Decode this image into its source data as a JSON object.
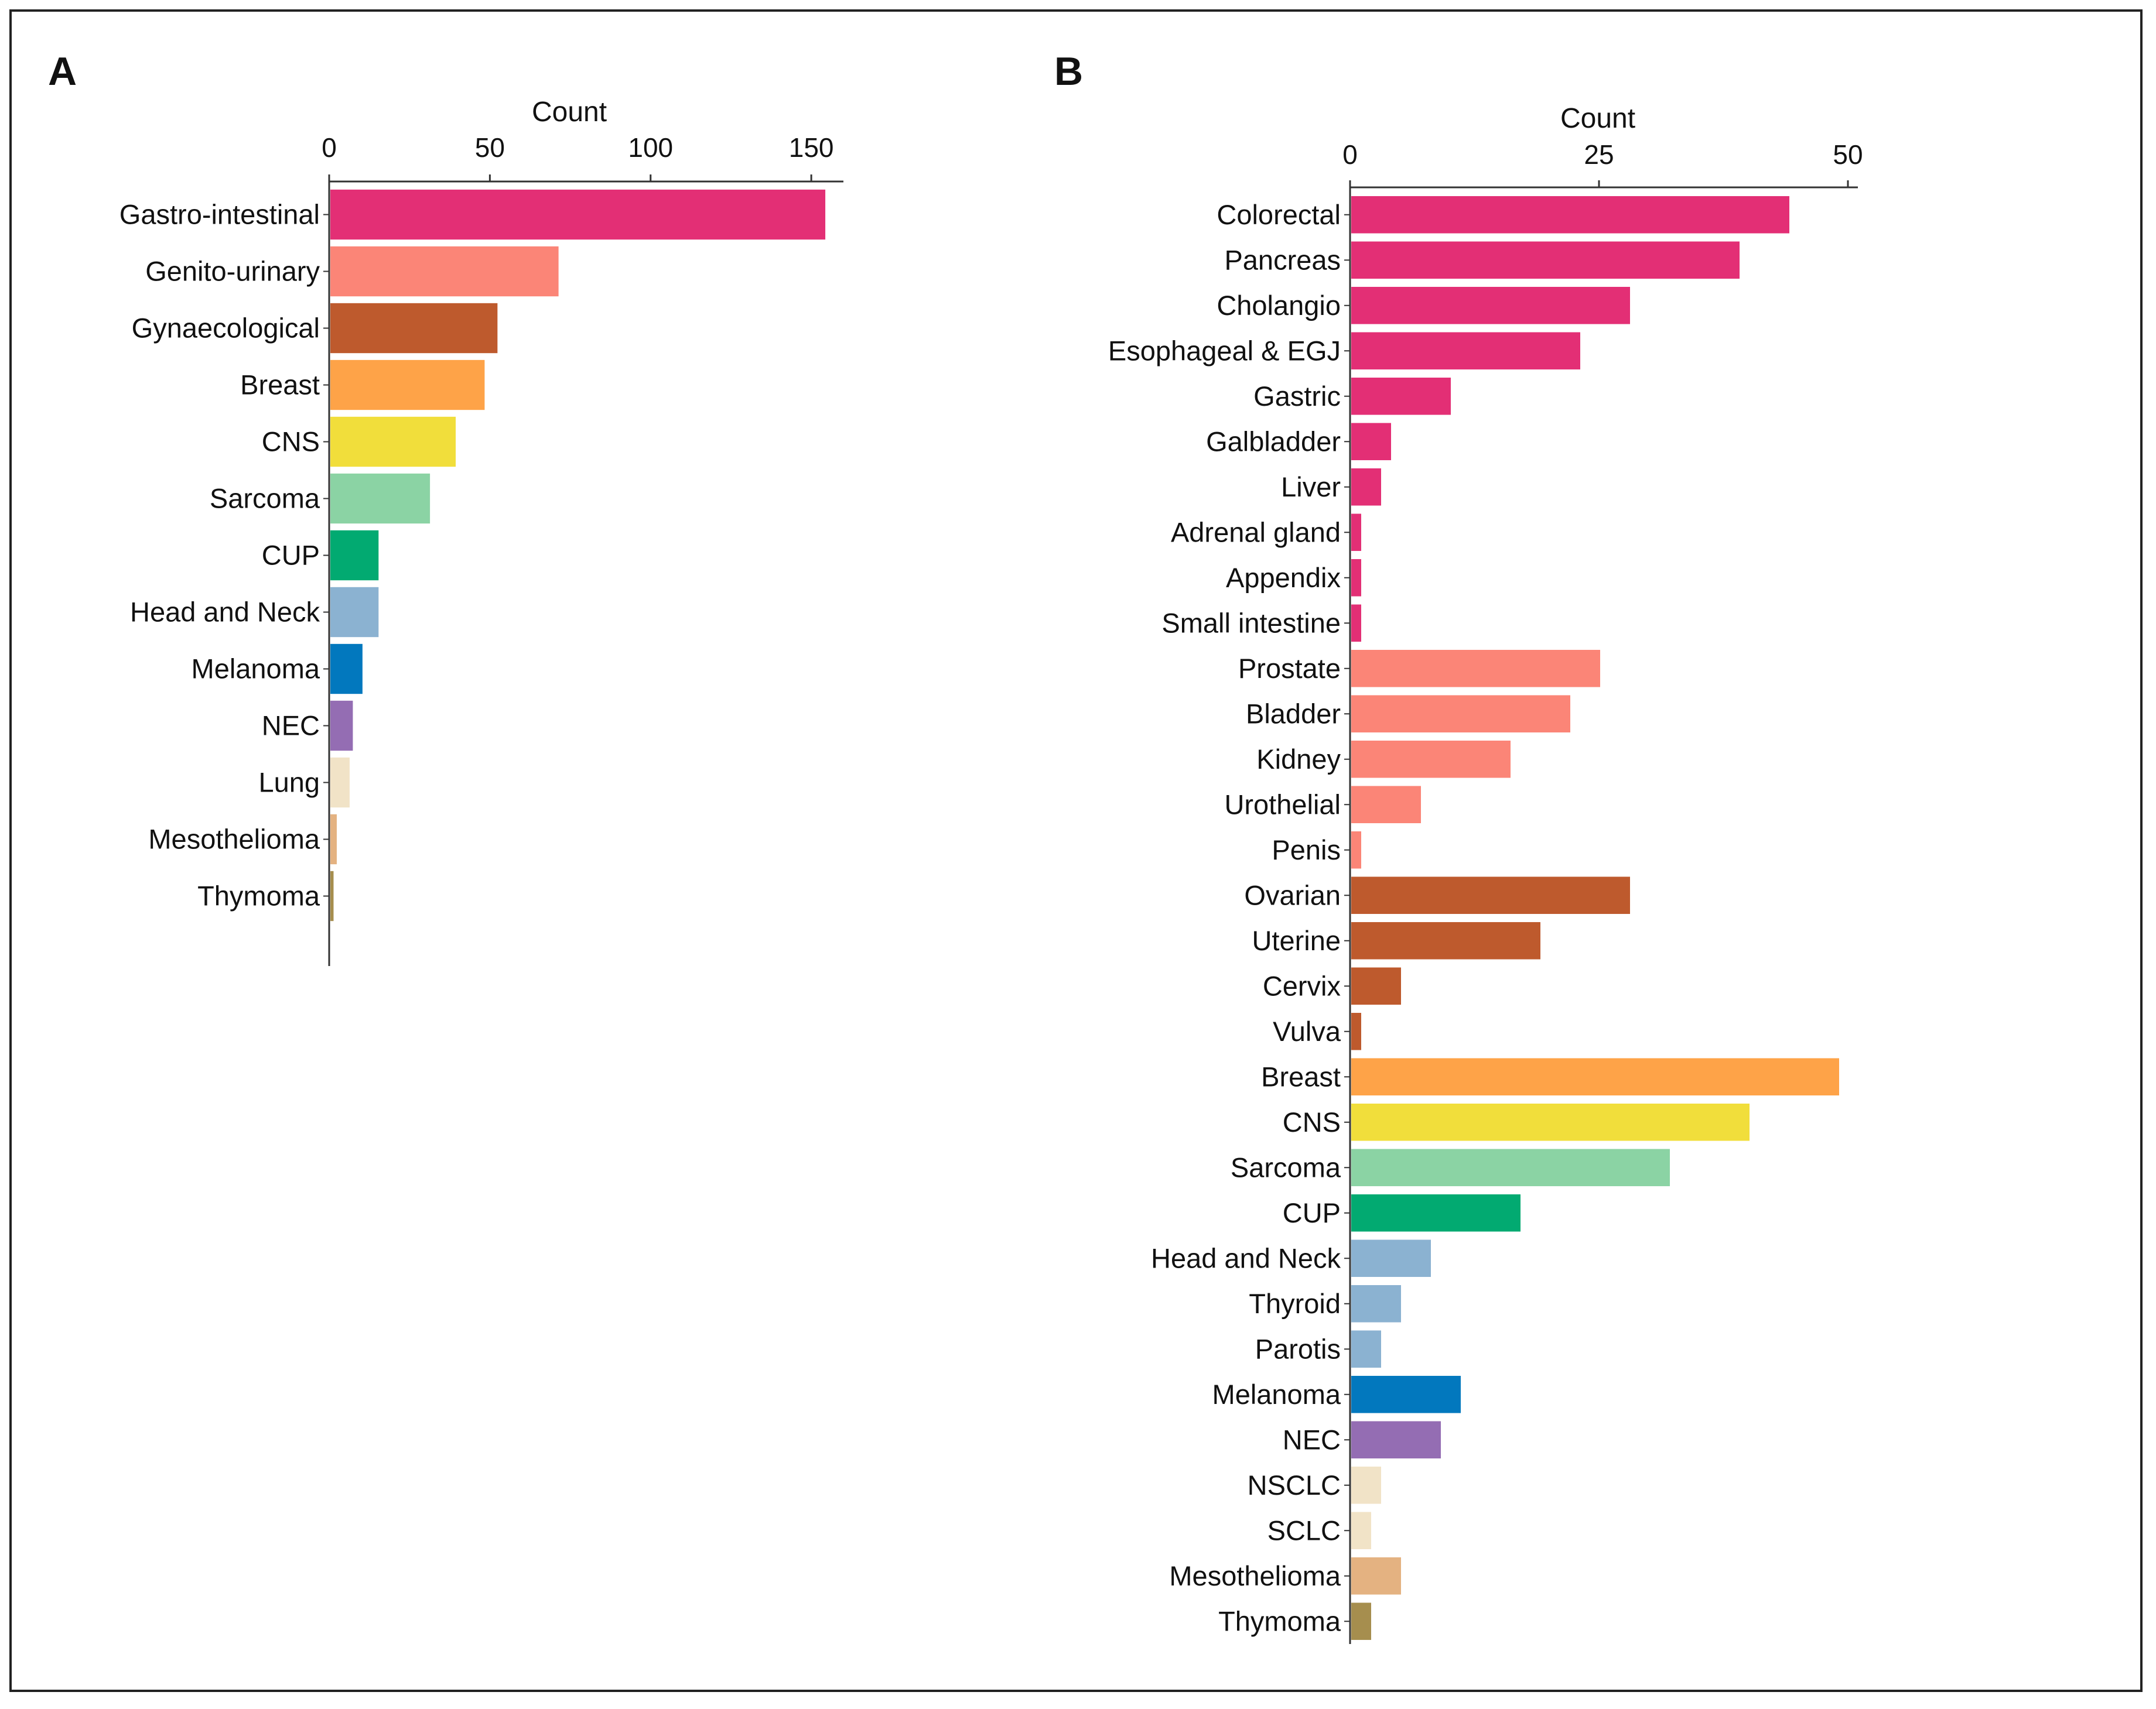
{
  "chart_data": [
    {
      "panel": "A",
      "type": "bar",
      "orientation": "horizontal",
      "xlabel": "Count",
      "xlim": [
        0,
        160
      ],
      "xticks": [
        0,
        50,
        100,
        150
      ],
      "categories": [
        "Gastro-intestinal",
        "Genito-urinary",
        "Gynaecological",
        "Breast",
        "CNS",
        "Sarcoma",
        "CUP",
        "Head and Neck",
        "Melanoma",
        "NEC",
        "Lung",
        "Mesothelioma",
        "Thymoma"
      ],
      "values": [
        154,
        71,
        52,
        48,
        39,
        31,
        15,
        15,
        10,
        7,
        6,
        2,
        1
      ],
      "colors": [
        "#e32f75",
        "#fb8577",
        "#be5a2d",
        "#fea348",
        "#f1de3b",
        "#8bd3a4",
        "#02aa71",
        "#8bb2d1",
        "#0278be",
        "#946db3",
        "#f1e3c7",
        "#e4b281",
        "#a68e4e"
      ]
    },
    {
      "panel": "B",
      "type": "bar",
      "orientation": "horizontal",
      "xlabel": "Count",
      "xlim": [
        0,
        51
      ],
      "xticks": [
        0,
        25,
        50
      ],
      "categories": [
        "Colorectal",
        "Pancreas",
        "Cholangio",
        "Esophageal & EGJ",
        "Gastric",
        "Galbladder",
        "Liver",
        "Adrenal gland",
        "Appendix",
        "Small intestine",
        "Prostate",
        "Bladder",
        "Kidney",
        "Urothelial",
        "Penis",
        "Ovarian",
        "Uterine",
        "Cervix",
        "Vulva",
        "Breast",
        "CNS",
        "Sarcoma",
        "CUP",
        "Head and Neck",
        "Thyroid",
        "Parotis",
        "Melanoma",
        "NEC",
        "NSCLC",
        "SCLC",
        "Mesothelioma",
        "Thymoma"
      ],
      "values": [
        44,
        39,
        28,
        23,
        10,
        4,
        3,
        1,
        1,
        1,
        25,
        22,
        16,
        7,
        1,
        28,
        19,
        5,
        1,
        49,
        40,
        32,
        17,
        8,
        5,
        3,
        11,
        9,
        3,
        2,
        5,
        2
      ],
      "colors": [
        "#e32f75",
        "#e32f75",
        "#e32f75",
        "#e32f75",
        "#e32f75",
        "#e32f75",
        "#e32f75",
        "#e32f75",
        "#e32f75",
        "#e32f75",
        "#fb8577",
        "#fb8577",
        "#fb8577",
        "#fb8577",
        "#fb8577",
        "#be5a2d",
        "#be5a2d",
        "#be5a2d",
        "#be5a2d",
        "#fea348",
        "#f1de3b",
        "#8bd3a4",
        "#02aa71",
        "#8bb2d1",
        "#8bb2d1",
        "#8bb2d1",
        "#0278be",
        "#946db3",
        "#f1e3c7",
        "#f1e3c7",
        "#e4b281",
        "#a68e4e"
      ]
    }
  ]
}
